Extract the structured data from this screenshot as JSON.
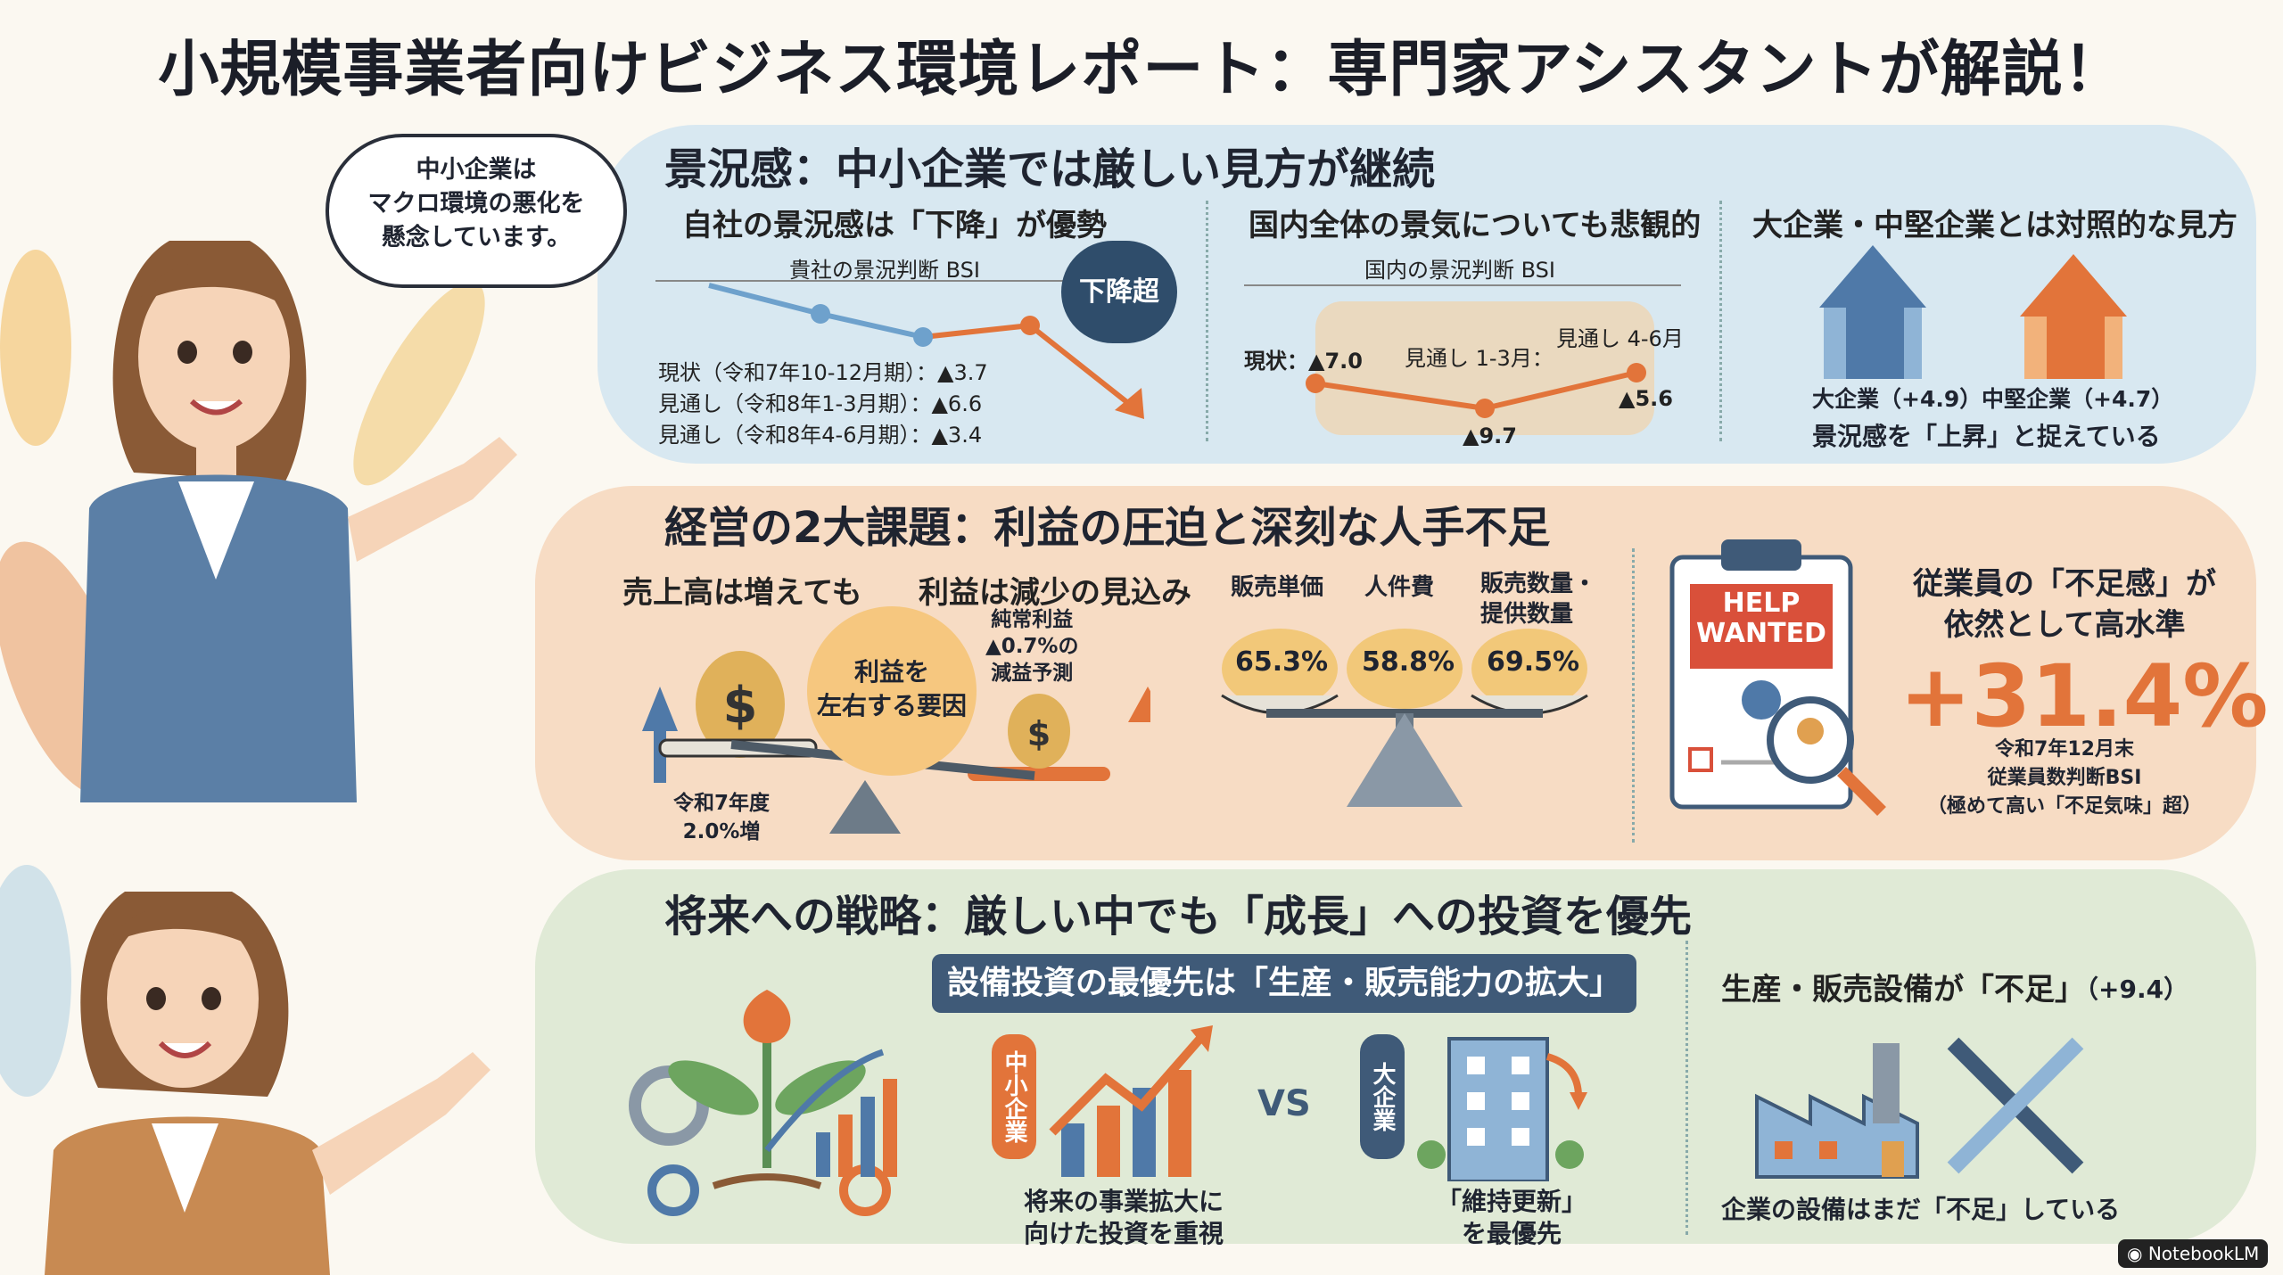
{
  "title": "小規模事業者向けビジネス環境レポート：専門家アシスタントが解説！",
  "speech_bubble": "中小企業は\nマクロ環境の悪化を\n懸念しています。",
  "s1": {
    "title": "景況感：中小企業では厳しい見方が継続",
    "col1": {
      "subtitle": "自社の景況感は「下降」が優勢",
      "chart_title": "貴社の景況判断 BSI",
      "badge": "下降超",
      "lines": [
        "現状（令和7年10-12月期）：▲3.7",
        "見通し（令和8年1-3月期）：▲6.6",
        "見通し（令和8年4-6月期）：▲3.4"
      ]
    },
    "col2": {
      "subtitle": "国内全体の景気についても悲観的",
      "chart_title": "国内の景況判断 BSI",
      "label_now": "現状：▲7.0",
      "label_q1": "見通し 1-3月：",
      "label_q2": "見通し 4-6月",
      "val_q1": "▲9.7",
      "val_q2": "▲5.6"
    },
    "col3": {
      "subtitle": "大企業・中堅企業とは対照的な見方",
      "large": "大企業（+4.9）",
      "mid": "中堅企業（+4.7）",
      "caption": "景況感を「上昇」と捉えている"
    }
  },
  "s2": {
    "title": "経営の2大課題：利益の圧迫と深刻な人手不足",
    "left_a": "売上高は増えても",
    "left_b": "利益は減少の見込み",
    "center": "利益を\n左右する要因",
    "profit_note": "純常利益\n▲0.7%の\n減益予測",
    "sales_note": "令和7年度\n2.0%増",
    "factors": [
      {
        "label": "販売単価",
        "value": "65.3%"
      },
      {
        "label": "人件費",
        "value": "58.8%"
      },
      {
        "label": "販売数量・\n提供数量",
        "value": "69.5%"
      }
    ],
    "help": "HELP\nWANTED",
    "labor_title": "従業員の「不足感」が\n依然として高水準",
    "labor_value": "+31.4%",
    "labor_note": "令和7年12月末\n従業員数判断BSI\n（極めて高い「不足気味」超）"
  },
  "s3": {
    "title": "将来への戦略：厳しい中でも「成長」への投資を優先",
    "banner": "設備投資の最優先は「生産・販売能力の拡大」",
    "sme_tag": "中小企業",
    "large_tag": "大企業",
    "vs": "VS",
    "sme_caption": "将来の事業拡大に\n向けた投資を重視",
    "large_caption": "「維持更新」\nを最優先",
    "right_title": "生産・販売設備が「不足」",
    "right_value": "（+9.4）",
    "right_caption": "企業の設備はまだ「不足」している"
  },
  "footer": "NotebookLM",
  "colors": {
    "accent_orange": "#e2743a",
    "accent_blue": "#4f79a8",
    "navy": "#3f5a78"
  }
}
